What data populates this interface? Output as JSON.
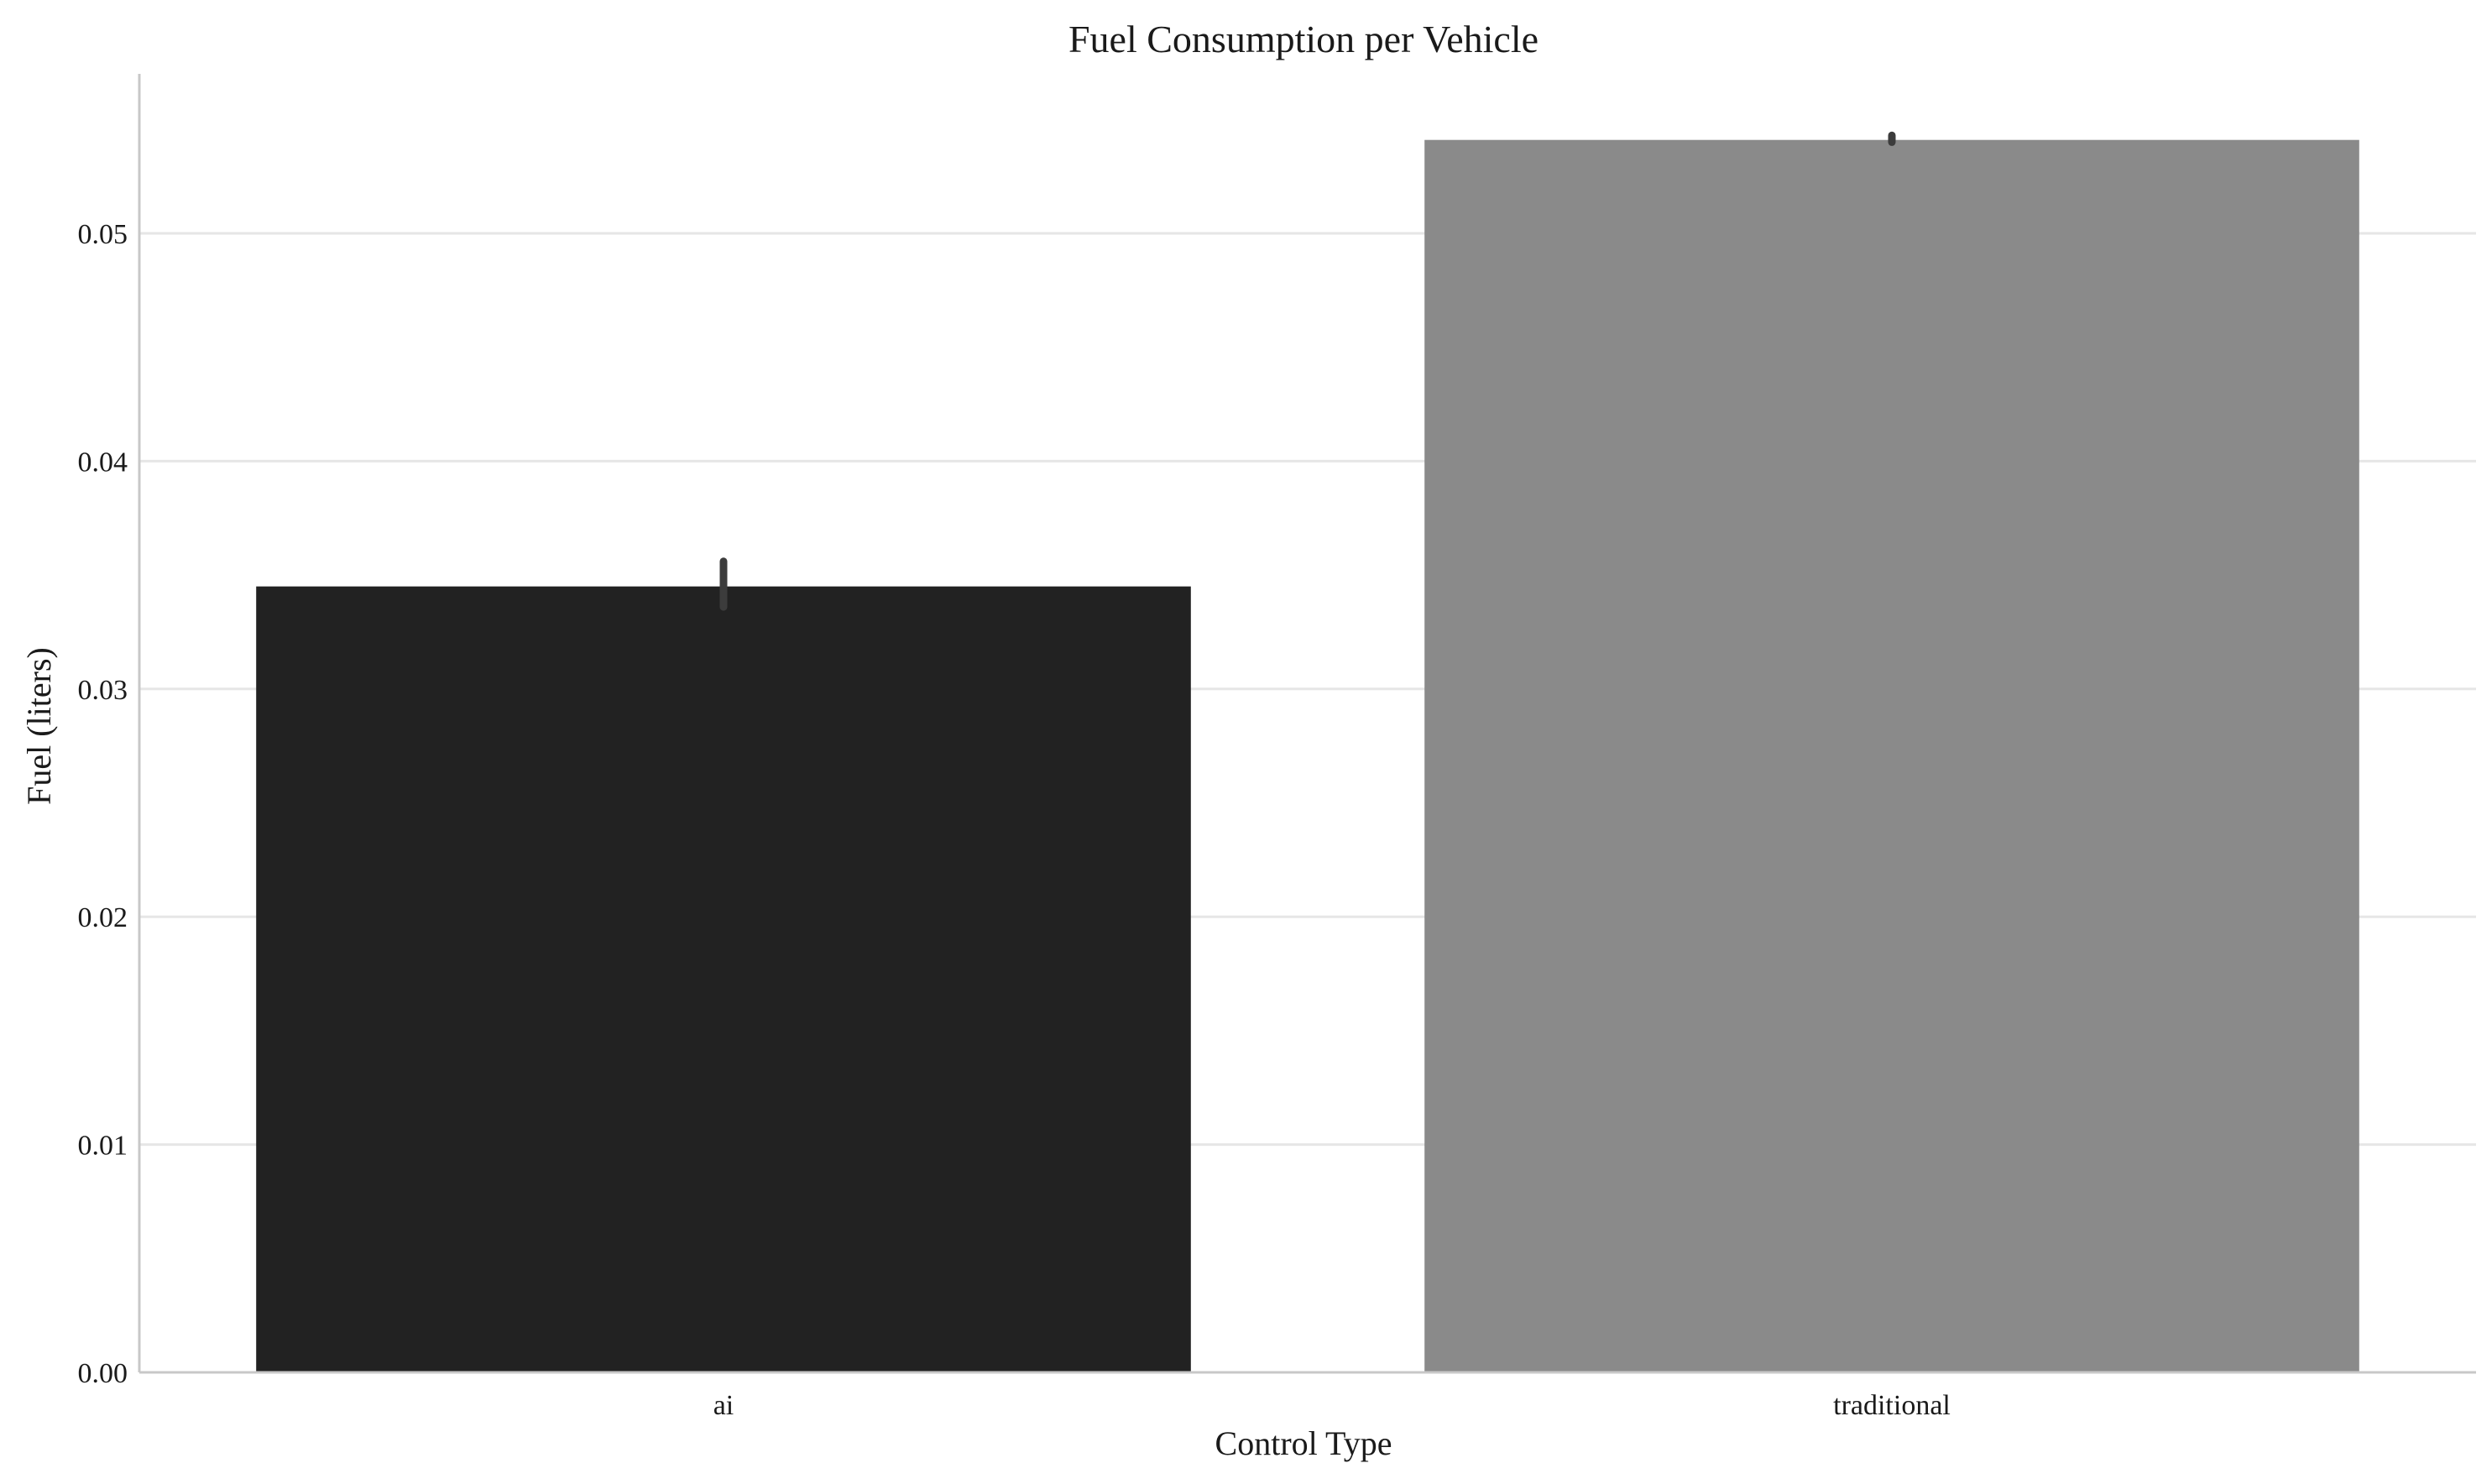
{
  "chart_data": {
    "type": "bar",
    "title": "Fuel Consumption per Vehicle",
    "xlabel": "Control Type",
    "ylabel": "Fuel (liters)",
    "categories": [
      "ai",
      "traditional"
    ],
    "values": [
      0.0345,
      0.0541
    ],
    "error_bars": [
      {
        "low": 0.0336,
        "high": 0.0356
      },
      {
        "low": 0.054,
        "high": 0.0543
      }
    ],
    "bar_colors": [
      "#222222",
      "#8a8a8a"
    ],
    "error_bar_color": "#3c3c3c",
    "ylim": [
      0,
      0.057
    ],
    "yticks": [
      0.0,
      0.01,
      0.02,
      0.03,
      0.04,
      0.05
    ],
    "ytick_labels": [
      "0.00",
      "0.01",
      "0.02",
      "0.03",
      "0.04",
      "0.05"
    ],
    "grid": "horizontal",
    "legend": "none"
  }
}
